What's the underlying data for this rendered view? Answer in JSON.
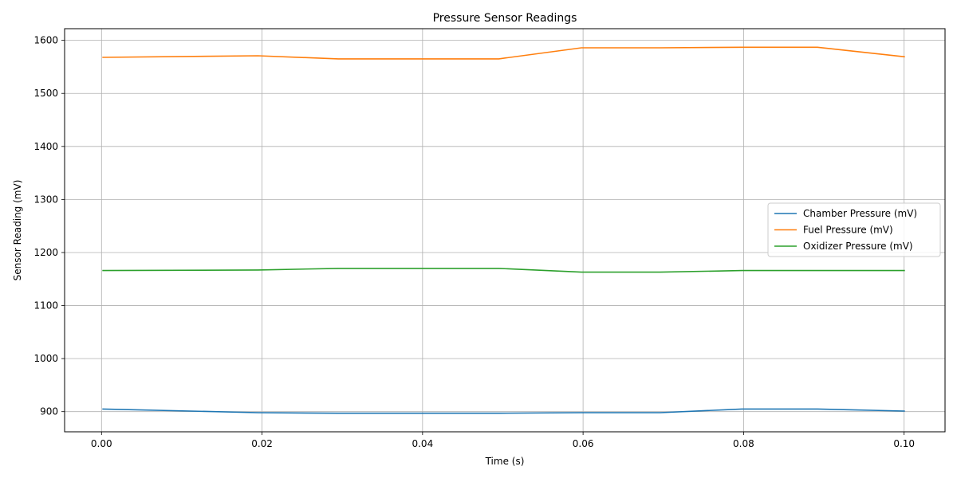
{
  "chart_data": {
    "type": "line",
    "title": "Pressure Sensor Readings",
    "xlabel": "Time (s)",
    "ylabel": "Sensor Reading (mV)",
    "xlim": [
      -0.0046,
      0.1051
    ],
    "ylim": [
      862,
      1622
    ],
    "x_ticks": [
      0.0,
      0.02,
      0.04,
      0.06,
      0.08,
      0.1
    ],
    "x_tick_labels": [
      "0.00",
      "0.02",
      "0.04",
      "0.06",
      "0.08",
      "0.10"
    ],
    "y_ticks": [
      900,
      1000,
      1100,
      1200,
      1300,
      1400,
      1500,
      1600
    ],
    "y_tick_labels": [
      "900",
      "1000",
      "1100",
      "1200",
      "1300",
      "1400",
      "1500",
      "1600"
    ],
    "grid": true,
    "legend_position": "center-right",
    "series": [
      {
        "name": "Chamber Pressure (mV)",
        "color": "#1f77b4",
        "x": [
          0.0001,
          0.0195,
          0.0295,
          0.0495,
          0.0598,
          0.0696,
          0.0798,
          0.0892,
          0.1001
        ],
        "y": [
          905,
          898,
          897,
          897,
          898,
          898,
          905,
          905,
          901
        ]
      },
      {
        "name": "Fuel Pressure (mV)",
        "color": "#ff7f0e",
        "x": [
          0.0001,
          0.0195,
          0.0295,
          0.0495,
          0.0598,
          0.0696,
          0.0798,
          0.0892,
          0.1001
        ],
        "y": [
          1568,
          1571,
          1565,
          1565,
          1586,
          1586,
          1587,
          1587,
          1569
        ]
      },
      {
        "name": "Oxidizer Pressure (mV)",
        "color": "#2ca02c",
        "x": [
          0.0001,
          0.0195,
          0.0295,
          0.0495,
          0.0598,
          0.0696,
          0.0798,
          0.0892,
          0.1001
        ],
        "y": [
          1166,
          1167,
          1170,
          1170,
          1163,
          1163,
          1166,
          1166,
          1166
        ]
      }
    ]
  }
}
